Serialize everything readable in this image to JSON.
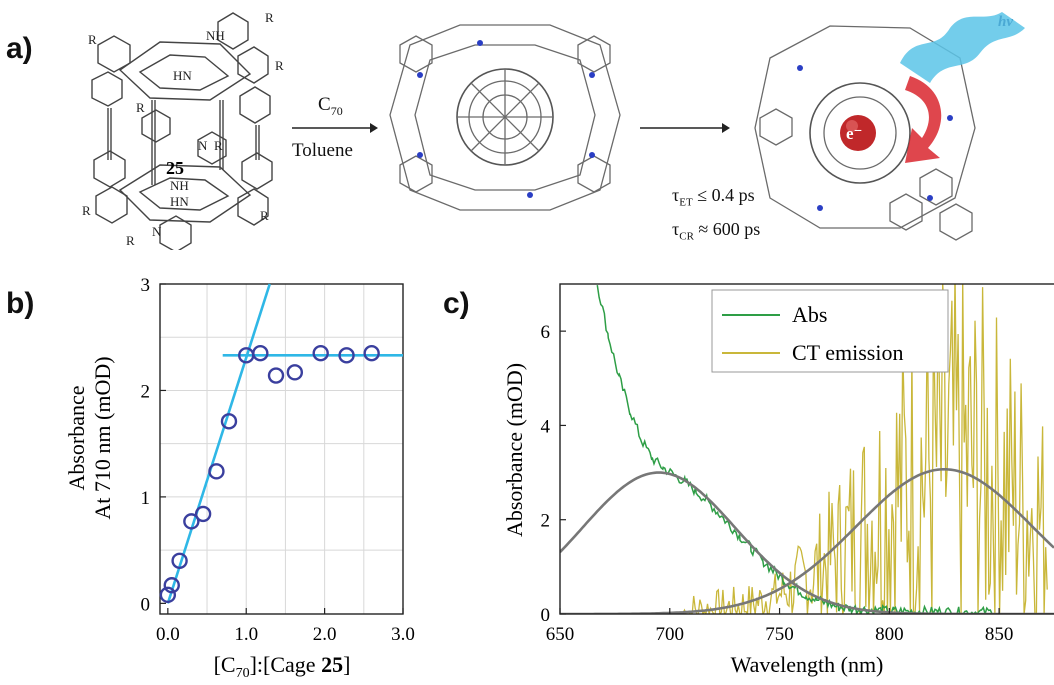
{
  "panel_a": {
    "label": "a)",
    "cage_number": "25",
    "r_label": "R",
    "amine_labels": [
      "NH",
      "HN",
      "N",
      "NH",
      "HN",
      "N"
    ],
    "arrow1_top_base": "C",
    "arrow1_top_sub": "70",
    "arrow1_bottom": "Toluene",
    "hv_label": "hν",
    "electron_label": "e⁻",
    "tau_et_label": "τ",
    "tau_et_sub": "ET",
    "tau_et_value": "≤ 0.4 ps",
    "tau_cr_label": "τ",
    "tau_cr_sub": "CR",
    "tau_cr_value": "≈ 600 ps",
    "colors": {
      "hv_wave": "#5bc4e8",
      "arrow_red": "#d9262e",
      "bond": "#555555",
      "nitrogen": "#2a3ec4"
    }
  },
  "panel_b": {
    "label": "b)"
  },
  "panel_c": {
    "label": "c)"
  },
  "chart_data": [
    {
      "id": "b",
      "type": "scatter",
      "x": [
        0.0,
        0.05,
        0.15,
        0.3,
        0.45,
        0.62,
        0.78,
        1.0,
        1.18,
        1.38,
        1.62,
        1.95,
        2.28,
        2.6
      ],
      "y": [
        0.08,
        0.17,
        0.4,
        0.77,
        0.84,
        1.24,
        1.71,
        2.33,
        2.35,
        2.14,
        2.17,
        2.35,
        2.33,
        2.35
      ],
      "fit_lines": [
        {
          "x": [
            0.0,
            1.3
          ],
          "y": [
            0.0,
            3.0
          ]
        },
        {
          "x": [
            0.7,
            3.0
          ],
          "y": [
            2.33,
            2.33
          ]
        }
      ],
      "xlabel_prefix": "[C",
      "xlabel_sub": "70",
      "xlabel_mid": "]:[Cage ",
      "xlabel_bold": "25",
      "xlabel_suffix": "]",
      "ylabel_line1": "Absorbance",
      "ylabel_line2": "At 710 nm (mOD)",
      "xlim": [
        -0.1,
        3.0
      ],
      "ylim": [
        -0.1,
        3.0
      ],
      "xticks": [
        "0.0",
        "1.0",
        "2.0",
        "3.0"
      ],
      "yticks": [
        "0",
        "1",
        "2",
        "3"
      ],
      "grid": true,
      "colors": {
        "marker": "#3a3f9e",
        "fit": "#2fb7e6",
        "grid": "#d8d8d8"
      }
    },
    {
      "id": "c",
      "type": "line",
      "series": [
        {
          "name": "Abs",
          "color": "#2e9e46"
        },
        {
          "name": "CT emission",
          "color": "#c9b73a"
        }
      ],
      "abs_points": [
        [
          667,
          7.0
        ],
        [
          672,
          5.9
        ],
        [
          677,
          5.0
        ],
        [
          682,
          4.3
        ],
        [
          687,
          3.7
        ],
        [
          692,
          3.3
        ],
        [
          697,
          3.1
        ],
        [
          702,
          2.95
        ],
        [
          707,
          2.8
        ],
        [
          712,
          2.6
        ],
        [
          717,
          2.4
        ],
        [
          722,
          2.15
        ],
        [
          727,
          1.9
        ],
        [
          732,
          1.65
        ],
        [
          737,
          1.4
        ],
        [
          742,
          1.15
        ],
        [
          747,
          0.92
        ],
        [
          752,
          0.72
        ],
        [
          757,
          0.55
        ],
        [
          762,
          0.4
        ],
        [
          767,
          0.3
        ],
        [
          772,
          0.22
        ],
        [
          777,
          0.15
        ],
        [
          782,
          0.12
        ],
        [
          787,
          0.1
        ],
        [
          792,
          0.08
        ],
        [
          797,
          0.07
        ],
        [
          802,
          0.06
        ],
        [
          812,
          0.05
        ],
        [
          822,
          0.05
        ],
        [
          832,
          0.04
        ],
        [
          842,
          0.04
        ],
        [
          848,
          0.04
        ]
      ],
      "ct_emission_envelope": {
        "start": 706,
        "end": 872,
        "peak_x": 830,
        "peak_y": 3.2,
        "width": 40
      },
      "abs_gauss_fit": {
        "center": 695,
        "amplitude": 3.0,
        "width": 35
      },
      "emission_gauss_fit": {
        "center": 825,
        "amplitude": 3.07,
        "width": 40
      },
      "xlabel": "Wavelength (nm)",
      "ylabel": "Absorbance (mOD)",
      "xlim": [
        650,
        875
      ],
      "ylim": [
        0,
        7
      ],
      "xticks": [
        "650",
        "700",
        "750",
        "800",
        "850"
      ],
      "yticks": [
        "0",
        "2",
        "4",
        "6"
      ],
      "legend_position": "top-center",
      "grid": false,
      "fit_color": "#777777"
    }
  ]
}
